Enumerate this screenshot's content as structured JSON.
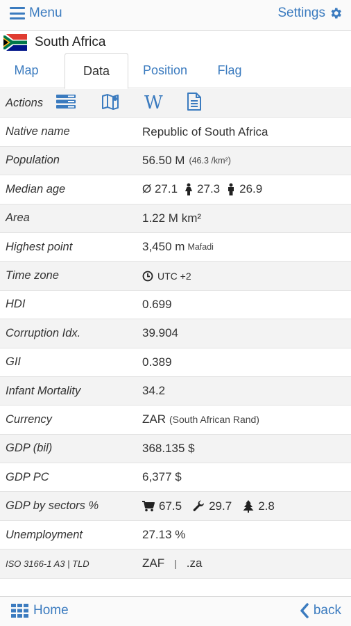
{
  "header": {
    "menu_label": "Menu",
    "settings_label": "Settings"
  },
  "country": {
    "name": "South Africa",
    "flag_icon": "south-africa-flag"
  },
  "tabs": [
    {
      "label": "Map",
      "active": false
    },
    {
      "label": "Data",
      "active": true
    },
    {
      "label": "Position",
      "active": false
    },
    {
      "label": "Flag",
      "active": false
    }
  ],
  "actions": {
    "label": "Actions",
    "icons": [
      "list-icon",
      "map-icon",
      "wikipedia-icon",
      "document-icon"
    ],
    "wiki_glyph": "W"
  },
  "rows": {
    "native_name": {
      "label": "Native name",
      "value": "Republic of South Africa"
    },
    "population": {
      "label": "Population",
      "value": "56.50 M",
      "density": "(46.3 /km²)"
    },
    "median_age": {
      "label": "Median age",
      "avg": "Ø 27.1",
      "female": "27.3",
      "male": "26.9"
    },
    "area": {
      "label": "Area",
      "value": "1.22 M km²"
    },
    "highest_point": {
      "label": "Highest point",
      "value": "3,450 m",
      "name": "Mafadi"
    },
    "time_zone": {
      "label": "Time zone",
      "value": "UTC +2"
    },
    "hdi": {
      "label": "HDI",
      "value": "0.699"
    },
    "corruption": {
      "label": "Corruption Idx.",
      "value": "39.904"
    },
    "gii": {
      "label": "GII",
      "value": "0.389"
    },
    "infant_mortality": {
      "label": "Infant Mortality",
      "value": "34.2"
    },
    "currency": {
      "label": "Currency",
      "code": "ZAR",
      "name": "(South African Rand)"
    },
    "gdp": {
      "label": "GDP (bil)",
      "value": "368.135 $"
    },
    "gdp_pc": {
      "label": "GDP PC",
      "value": "6,377 $"
    },
    "gdp_sectors": {
      "label": "GDP by sectors %",
      "services": "67.5",
      "industry": "29.7",
      "agriculture": "2.8"
    },
    "unemployment": {
      "label": "Unemployment",
      "value": "27.13 %"
    },
    "iso": {
      "label": "ISO 3166-1 A3 | TLD",
      "code": "ZAF",
      "separator": "|",
      "tld": ".za"
    }
  },
  "footer": {
    "home_label": "Home",
    "back_label": "back"
  },
  "colors": {
    "accent": "#3b7bbf",
    "row_alt": "#f3f3f3",
    "border": "#d8d8d8"
  }
}
